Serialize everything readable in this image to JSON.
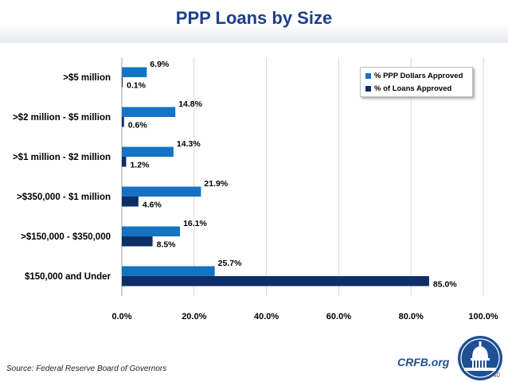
{
  "title": "PPP Loans by Size",
  "source": "Source: Federal Reserve Board of Governors",
  "brand": "CRFB.org",
  "page_number": "40",
  "logo_icon": "capitol-dome-seal-icon",
  "colors": {
    "title": "#1c3f8a",
    "series1": "#1573c4",
    "series2": "#0d2f66",
    "grid": "#d9d9d9"
  },
  "chart_data": {
    "type": "bar",
    "orientation": "horizontal",
    "title": "PPP Loans by Size",
    "categories": [
      ">$5 million",
      ">$2 million - $5 million",
      ">$1 million - $2 million",
      ">$350,000 - $1 million",
      ">$150,000 - $350,000",
      "$150,000 and Under"
    ],
    "series": [
      {
        "name": "% PPP Dollars Approved",
        "values": [
          6.9,
          14.8,
          14.3,
          21.9,
          16.1,
          25.7
        ],
        "labels": [
          "6.9%",
          "14.8%",
          "14.3%",
          "21.9%",
          "16.1%",
          "25.7%"
        ],
        "color": "#1573c4"
      },
      {
        "name": "% of Loans Approved",
        "values": [
          0.1,
          0.6,
          1.2,
          4.6,
          8.5,
          85.0
        ],
        "labels": [
          "0.1%",
          "0.6%",
          "1.2%",
          "4.6%",
          "8.5%",
          "85.0%"
        ],
        "color": "#0d2f66"
      }
    ],
    "xlim": [
      0,
      100
    ],
    "xticks": [
      0,
      20,
      40,
      60,
      80,
      100
    ],
    "xtick_labels": [
      "0.0%",
      "20.0%",
      "40.0%",
      "60.0%",
      "80.0%",
      "100.0%"
    ],
    "grid": true,
    "legend_position": "top-right"
  }
}
